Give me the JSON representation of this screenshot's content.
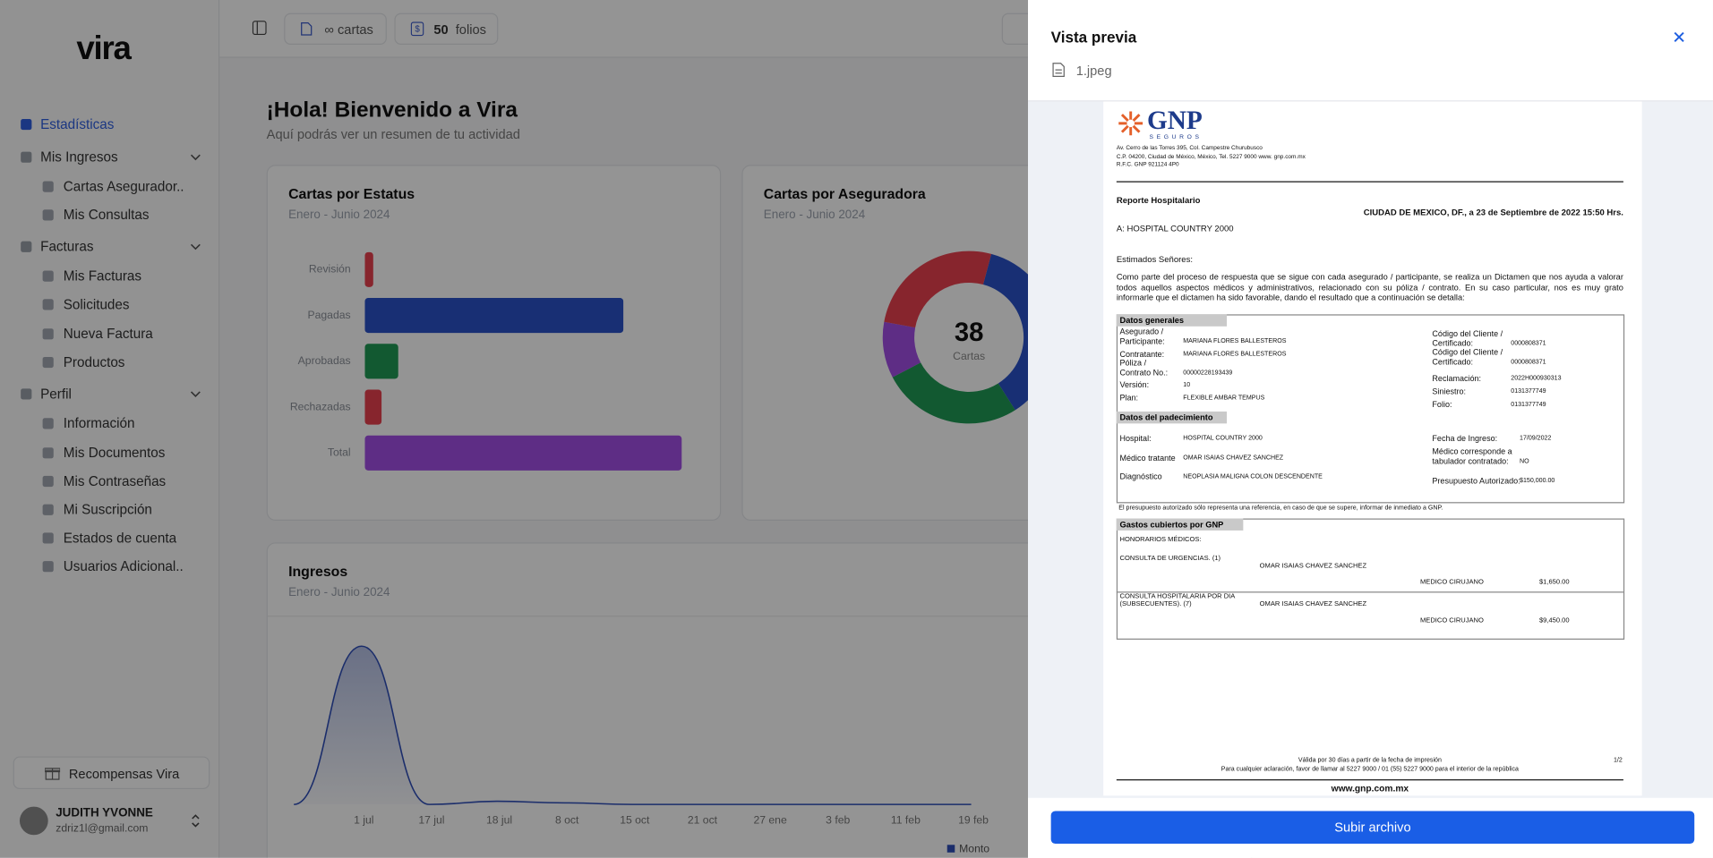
{
  "sidebar": {
    "logo": "vira",
    "nav": [
      {
        "label": "Estadísticas"
      },
      {
        "label": "Mis Ingresos",
        "children": [
          "Cartas Asegurador...",
          "Mis Consultas"
        ]
      },
      {
        "label": "Facturas",
        "children": [
          "Mis Facturas",
          "Solicitudes",
          "Nueva Factura",
          "Productos"
        ]
      },
      {
        "label": "Perfil",
        "children": [
          "Información",
          "Mis Documentos",
          "Mis Contraseñas",
          "Mi Suscripción",
          "Estados de cuenta",
          "Usuarios Adicional..."
        ]
      }
    ],
    "rewards": "Recompensas Vira",
    "user": {
      "name": "JUDITH YVONNE",
      "email": "zdriz1l@gmail.com"
    }
  },
  "topbar": {
    "cartas": {
      "count": "∞",
      "unit": "cartas"
    },
    "folios": {
      "count": 50,
      "unit": "folios"
    }
  },
  "greeting": {
    "title": "¡Hola! Bienvenido a Vira",
    "subtitle": "Aquí podrás ver un resumen de tu actividad"
  },
  "chart_data": [
    {
      "type": "bar",
      "orientation": "horizontal",
      "title": "Cartas por Estatus",
      "subtitle": "Enero - Junio 2024",
      "categories": [
        "Revisión",
        "Pagadas",
        "Aprobadas",
        "Rechazadas",
        "Total"
      ],
      "values": [
        1,
        31,
        4,
        2,
        38
      ],
      "colors": [
        "#e8414f",
        "#2a52c9",
        "#1f9a55",
        "#e8414f",
        "#a24fe6"
      ]
    },
    {
      "type": "donut",
      "title": "Cartas por Aseguradora",
      "subtitle": "Enero - Junio 2024",
      "values": [
        14,
        10,
        4,
        10
      ],
      "colors": [
        "#2a52c9",
        "#1f9a55",
        "#a24fe6",
        "#e8414f"
      ],
      "center_value": 38,
      "center_label": "Cartas"
    },
    {
      "type": "area",
      "title": "Ingresos",
      "subtitle": "Enero - Junio 2024",
      "categories": [
        null,
        "1 jul",
        "17 jul",
        "18 jul",
        "8 oct",
        "15 oct",
        "21 oct",
        "27 ene",
        "3 feb",
        "11 feb",
        "19 feb"
      ],
      "series": [
        {
          "name": "Monto",
          "color": "#2f4fb8",
          "values": [
            0,
            100,
            0,
            2,
            1,
            0,
            0,
            0,
            0,
            0,
            0
          ]
        }
      ]
    }
  ],
  "drawer": {
    "title": "Vista previa",
    "file": "1.jpeg",
    "button": "Subir archivo",
    "document": {
      "logo": "GNP",
      "logo_sub": "SEGUROS",
      "address": [
        "Av. Cerro de las Torres 395, Col. Campestre Churubusco",
        "C.P. 04200, Ciudad de México, México, Tel. 5227 9000 www. gnp.com.mx",
        "R.F.C. GNP 921124 4P0"
      ],
      "report_title": "Reporte Hospitalario",
      "date_line": "CIUDAD DE MEXICO, DF., a 23 de Septiembre de 2022  15:50 Hrs.",
      "to": "A:  HOSPITAL COUNTRY 2000",
      "salutation": "Estimados Señores:",
      "intro": "Como parte del proceso de respuesta que se sigue con cada asegurado / participante, se realiza un Dictamen que nos ayuda a valorar todos aquellos aspectos médicos y administrativos, relacionado con su póliza / contrato. En su caso particular, nos es muy grato informarle que el dictamen ha sido favorable, dando el resultado que a continuación se detalla:",
      "general": {
        "heading": "Datos generales",
        "left": [
          {
            "label": "Asegurado / Participante:",
            "value": "MARIANA FLORES BALLESTEROS"
          },
          {
            "label": "Contratante:",
            "value": "MARIANA FLORES BALLESTEROS"
          },
          {
            "label": "Póliza / Contrato No.:",
            "value": "00000228193439"
          },
          {
            "label": "Versión:",
            "value": "10"
          },
          {
            "label": "Plan:",
            "value": "FLEXIBLE AMBAR TEMPUS"
          }
        ],
        "right": [
          {
            "label": "Código del Cliente / Certificado:",
            "value": "0000808371"
          },
          {
            "label": "Código del Cliente / Certificado:",
            "value": "0000808371"
          },
          {
            "label": "Reclamación:",
            "value": "2022H000930313"
          },
          {
            "label": "Siniestro:",
            "value": "0131377749"
          },
          {
            "label": "Folio:",
            "value": "0131377749"
          }
        ]
      },
      "condition": {
        "heading": "Datos del padecimiento",
        "left": [
          {
            "label": "Hospital:",
            "value": "HOSPITAL COUNTRY 2000"
          },
          {
            "label": "Médico tratante",
            "value": "OMAR ISAIAS CHAVEZ SANCHEZ"
          },
          {
            "label": "Diagnóstico",
            "value": "NEOPLASIA MALIGNA COLON DESCENDENTE"
          }
        ],
        "right": [
          {
            "label": "Fecha de Ingreso:",
            "value": "17/09/2022"
          },
          {
            "label": "Médico corresponde a tabulador contratado:",
            "value": "NO"
          },
          {
            "label": "Presupuesto Autorizado:",
            "value": "$150,000.00"
          }
        ]
      },
      "budget_note": "El presupuesto autorizado sólo representa una referencia, en caso de que se supere, informar de inmediato a GNP.",
      "expenses": {
        "heading": "Gastos cubiertos por GNP",
        "subheading": "HONORARIOS MÉDICOS:",
        "items": [
          {
            "concept": "CONSULTA DE URGENCIAS. (1)",
            "doctor": "OMAR ISAIAS CHAVEZ SANCHEZ",
            "role": "MEDICO CIRUJANO",
            "amount": "$1,650.00"
          },
          {
            "concept": "CONSULTA HOSPITALARIA POR DIA (SUBSECUENTES). (7)",
            "doctor": "OMAR ISAIAS CHAVEZ SANCHEZ",
            "role": "MEDICO CIRUJANO",
            "amount": "$9,450.00"
          }
        ]
      },
      "validity": "Válida por 30 días a partir de la fecha de impresión",
      "page": "1/2",
      "contact": "Para cualquier aclaración, favor de llamar al 5227 9000 / 01 (55) 5227 9000 para el interior de la república",
      "website": "www.gnp.com.mx"
    }
  }
}
